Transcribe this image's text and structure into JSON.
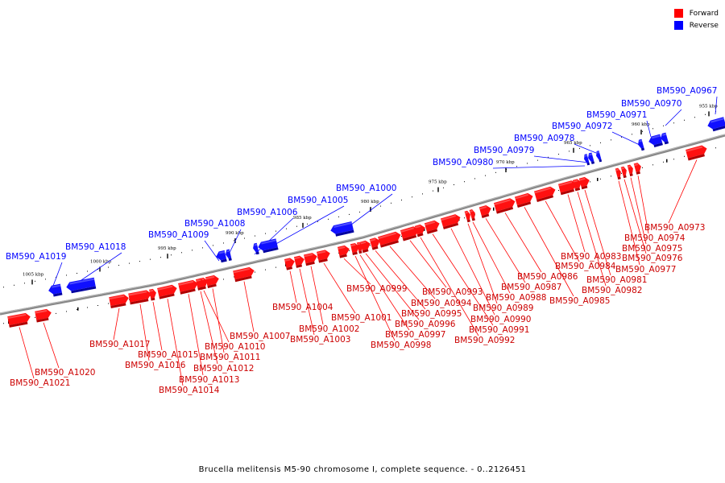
{
  "legend": [
    {
      "label": "Forward",
      "color": "#ff0000"
    },
    {
      "label": "Reverse",
      "color": "#0000ff"
    }
  ],
  "caption": "Brucella melitensis M5-90 chromosome I, complete sequence. - 0..2126451",
  "scale_ticks": [
    {
      "label": "1005 kbp",
      "kbp": 1005
    },
    {
      "label": "1000 kbp",
      "kbp": 1000
    },
    {
      "label": "995 kbp",
      "kbp": 995
    },
    {
      "label": "990 kbp",
      "kbp": 990
    },
    {
      "label": "985 kbp",
      "kbp": 985
    },
    {
      "label": "980 kbp",
      "kbp": 980
    },
    {
      "label": "975 kbp",
      "kbp": 975
    },
    {
      "label": "970 kbp",
      "kbp": 970
    },
    {
      "label": "965 kbp",
      "kbp": 965
    },
    {
      "label": "960 kbp",
      "kbp": 960
    },
    {
      "label": "955 kbp",
      "kbp": 955
    }
  ],
  "reverse_genes": [
    {
      "name": "BM590_A0967"
    },
    {
      "name": "BM590_A0970"
    },
    {
      "name": "BM590_A0971"
    },
    {
      "name": "BM590_A0972"
    },
    {
      "name": "BM590_A0978"
    },
    {
      "name": "BM590_A0979"
    },
    {
      "name": "BM590_A0980"
    },
    {
      "name": "BM590_A1000"
    },
    {
      "name": "BM590_A1005"
    },
    {
      "name": "BM590_A1006"
    },
    {
      "name": "BM590_A1008"
    },
    {
      "name": "BM590_A1009"
    },
    {
      "name": "BM590_A1018"
    },
    {
      "name": "BM590_A1019"
    }
  ],
  "forward_genes": [
    {
      "name": "BM590_A0973"
    },
    {
      "name": "BM590_A0974"
    },
    {
      "name": "BM590_A0975"
    },
    {
      "name": "BM590_A0976"
    },
    {
      "name": "BM590_A0977"
    },
    {
      "name": "BM590_A0981"
    },
    {
      "name": "BM590_A0982"
    },
    {
      "name": "BM590_A0983"
    },
    {
      "name": "BM590_A0984"
    },
    {
      "name": "BM590_A0985"
    },
    {
      "name": "BM590_A0986"
    },
    {
      "name": "BM590_A0987"
    },
    {
      "name": "BM590_A0988"
    },
    {
      "name": "BM590_A0989"
    },
    {
      "name": "BM590_A0990"
    },
    {
      "name": "BM590_A0991"
    },
    {
      "name": "BM590_A0992"
    },
    {
      "name": "BM590_A0993"
    },
    {
      "name": "BM590_A0994"
    },
    {
      "name": "BM590_A0995"
    },
    {
      "name": "BM590_A0996"
    },
    {
      "name": "BM590_A0997"
    },
    {
      "name": "BM590_A0998"
    },
    {
      "name": "BM590_A0999"
    },
    {
      "name": "BM590_A1001"
    },
    {
      "name": "BM590_A1002"
    },
    {
      "name": "BM590_A1003"
    },
    {
      "name": "BM590_A1004"
    },
    {
      "name": "BM590_A1007"
    },
    {
      "name": "BM590_A1010"
    },
    {
      "name": "BM590_A1011"
    },
    {
      "name": "BM590_A1012"
    },
    {
      "name": "BM590_A1013"
    },
    {
      "name": "BM590_A1014"
    },
    {
      "name": "BM590_A1015"
    },
    {
      "name": "BM590_A1016"
    },
    {
      "name": "BM590_A1017"
    },
    {
      "name": "BM590_A1020"
    },
    {
      "name": "BM590_A1021"
    }
  ]
}
